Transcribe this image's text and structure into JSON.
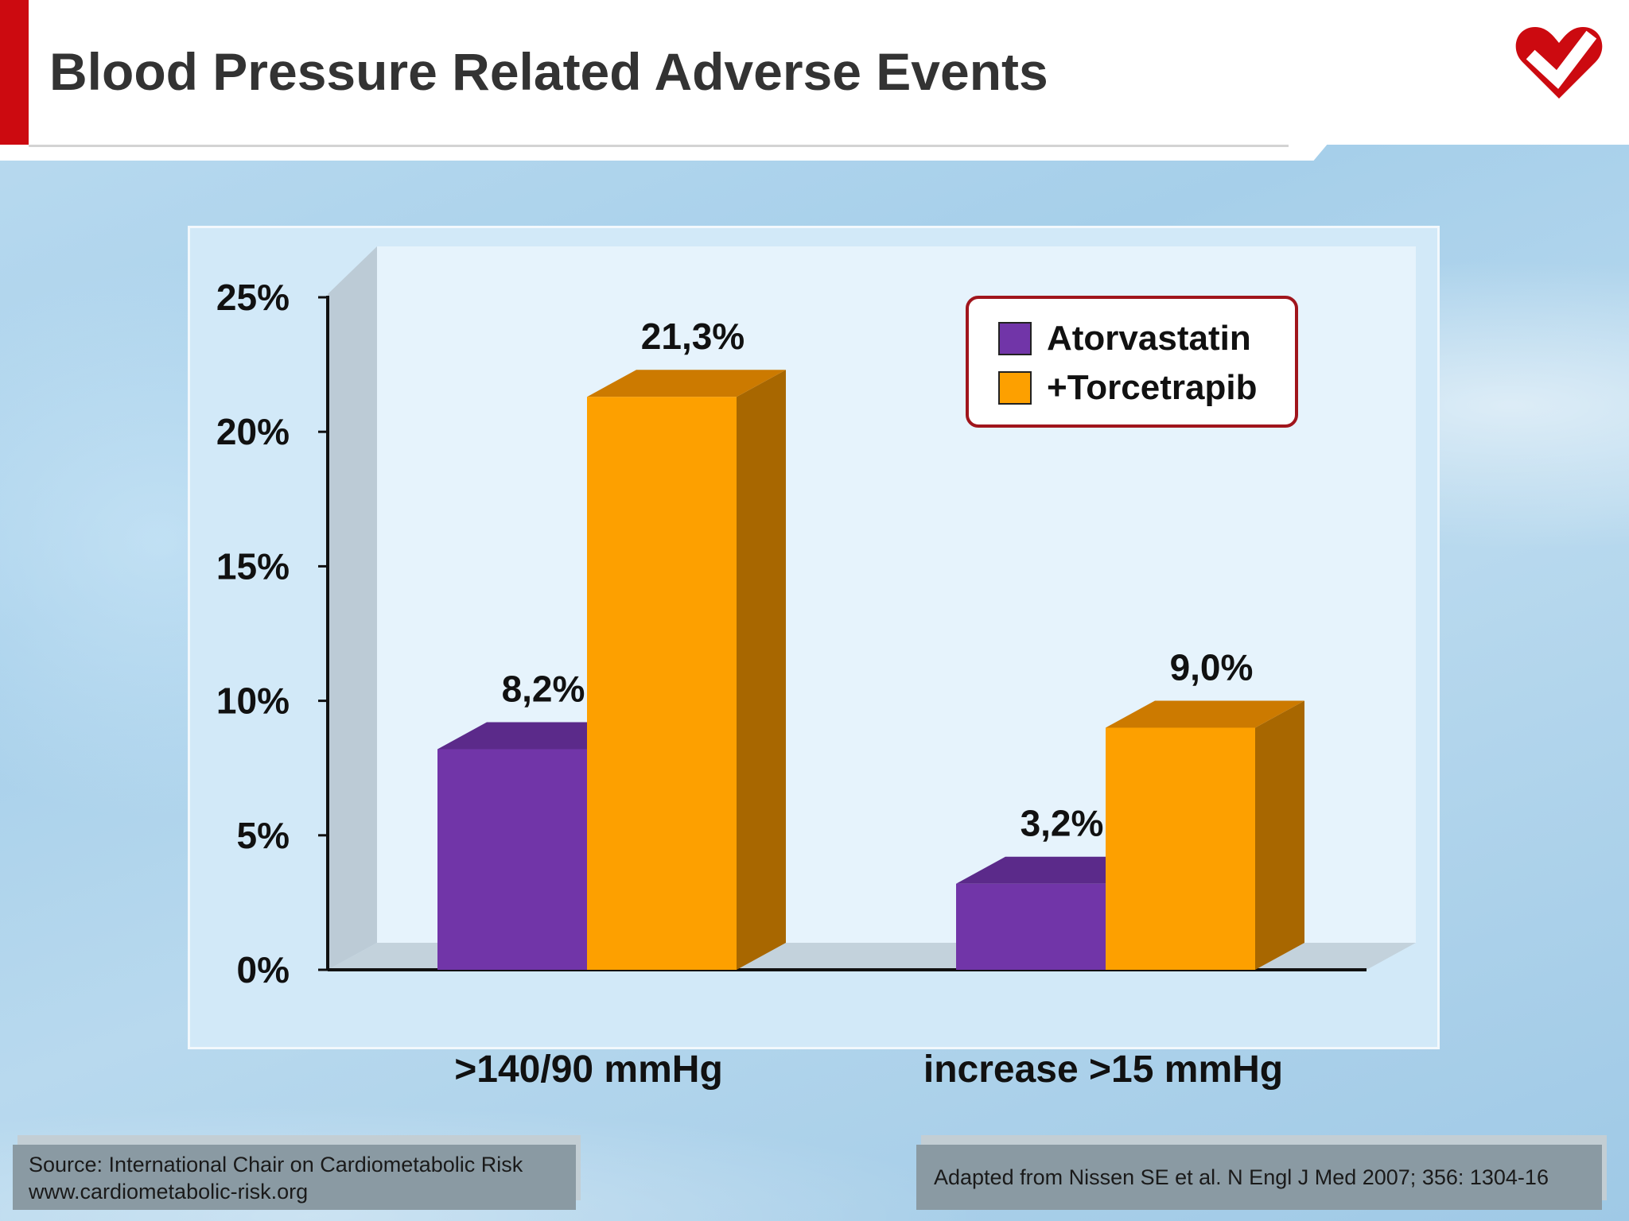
{
  "slide": {
    "title": "Blood Pressure Related Adverse Events",
    "source_line1": "Source: International Chair on Cardiometabolic Risk",
    "source_line2": "www.cardiometabolic-risk.org",
    "citation": "Adapted from Nissen SE et al. N Engl J Med 2007; 356: 1304-16",
    "logo_icon": "heart-check-icon"
  },
  "colors": {
    "accent_red": "#cc0a10",
    "series_purple": "#7135a8",
    "series_orange": "#fda000"
  },
  "chart_data": {
    "type": "bar",
    "title": "",
    "xlabel": "",
    "ylabel": "",
    "categories": [
      ">140/90 mmHg",
      "increase >15 mmHg"
    ],
    "series": [
      {
        "name": "Atorvastatin",
        "values": [
          8.2,
          3.2
        ],
        "labels": [
          "8,2%",
          "3,2%"
        ],
        "color": "#7135a8"
      },
      {
        "name": "+Torcetrapib",
        "values": [
          21.3,
          9.0
        ],
        "labels": [
          "21,3%",
          "9,0%"
        ],
        "color": "#fda000"
      }
    ],
    "ylim": [
      0,
      25
    ],
    "yticks": [
      0,
      5,
      10,
      15,
      20,
      25
    ],
    "ytick_labels": [
      "0%",
      "5%",
      "10%",
      "15%",
      "20%",
      "25%"
    ],
    "grid": false,
    "legend_position": "top-right",
    "style": "3d-column"
  }
}
